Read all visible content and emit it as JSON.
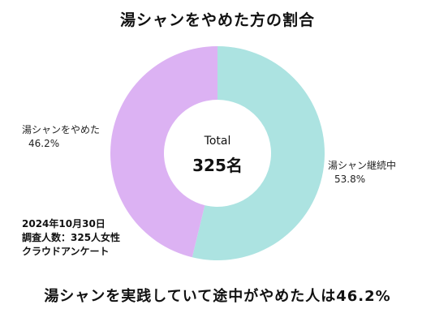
{
  "chart_data": {
    "type": "pie",
    "title": "湯シャンをやめた方の割合",
    "categories": [
      "湯シャン継続中",
      "湯シャンをやめた"
    ],
    "values": [
      53.8,
      46.2
    ],
    "value_labels": [
      "53.8%",
      "46.2%"
    ],
    "colors": [
      "#ace3e1",
      "#dcb2f3"
    ],
    "center_title": "Total",
    "center_value": "325名"
  },
  "note": {
    "line1": "2024年10月30日",
    "line2": "調査人数：325人女性",
    "line3": "クラウドアンケート"
  },
  "conclusion": "湯シャンを実践していて途中がやめた人は46.2%"
}
